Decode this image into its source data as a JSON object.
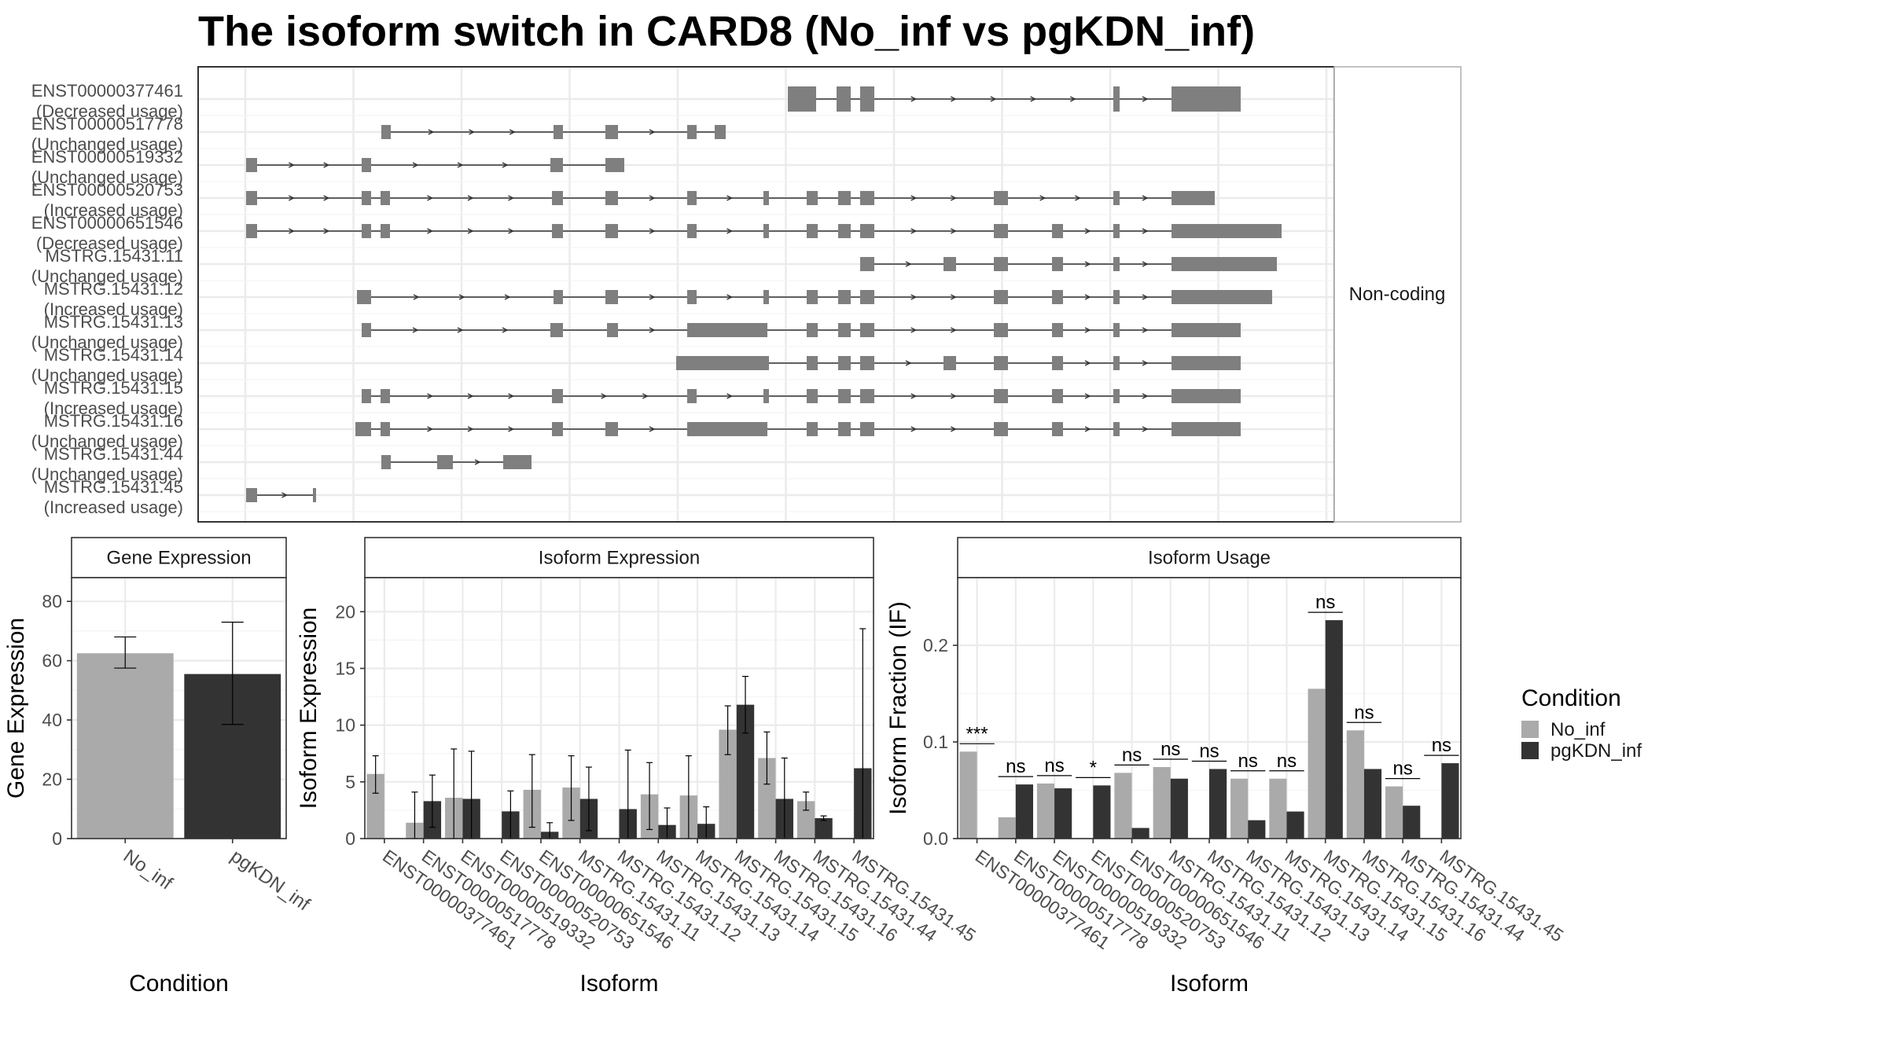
{
  "title": "The isoform switch in CARD8 (No_inf vs pgKDN_inf)",
  "colors": {
    "no_inf": "#aaaaaa",
    "pgkdn_inf": "#333333",
    "exon": "#7f7f7f",
    "grid": "#ebebeb",
    "panel_border": "#333333",
    "strip_fill": "#ffffff"
  },
  "structure_panel": {
    "strip_label": "Non-coding",
    "isoforms": [
      {
        "id": "ENST00000377461",
        "usage": "(Decreased usage)"
      },
      {
        "id": "ENST00000517778",
        "usage": "(Unchanged usage)"
      },
      {
        "id": "ENST00000519332",
        "usage": "(Unchanged usage)"
      },
      {
        "id": "ENST00000520753",
        "usage": "(Increased usage)"
      },
      {
        "id": "ENST00000651546",
        "usage": "(Decreased usage)"
      },
      {
        "id": "MSTRG.15431.11",
        "usage": "(Unchanged usage)"
      },
      {
        "id": "MSTRG.15431.12",
        "usage": "(Increased usage)"
      },
      {
        "id": "MSTRG.15431.13",
        "usage": "(Unchanged usage)"
      },
      {
        "id": "MSTRG.15431.14",
        "usage": "(Unchanged usage)"
      },
      {
        "id": "MSTRG.15431.15",
        "usage": "(Increased usage)"
      },
      {
        "id": "MSTRG.15431.16",
        "usage": "(Unchanged usage)"
      },
      {
        "id": "MSTRG.15431.44",
        "usage": "(Unchanged usage)"
      },
      {
        "id": "MSTRG.15431.45",
        "usage": "(Increased usage)"
      }
    ]
  },
  "legend": {
    "title": "Condition",
    "items": [
      "No_inf",
      "pgKDN_inf"
    ]
  },
  "chart_data": [
    {
      "type": "bar",
      "strip": "Gene Expression",
      "xlabel": "Condition",
      "ylabel": "Gene Expression",
      "ylim": [
        0,
        88
      ],
      "yticks": [
        0,
        20,
        40,
        60,
        80
      ],
      "categories": [
        "No_inf",
        "pgKDN_inf"
      ],
      "values": [
        62.5,
        55.5
      ],
      "error_low": [
        57.5,
        38.5
      ],
      "error_high": [
        68,
        73
      ]
    },
    {
      "type": "bar",
      "strip": "Isoform Expression",
      "xlabel": "Isoform",
      "ylabel": "Isoform Expression",
      "ylim": [
        0,
        23
      ],
      "yticks": [
        0,
        5,
        10,
        15,
        20
      ],
      "categories": [
        "ENST00000377461",
        "ENST00000517778",
        "ENST00000519332",
        "ENST00000520753",
        "ENST00000651546",
        "MSTRG.15431.11",
        "MSTRG.15431.12",
        "MSTRG.15431.13",
        "MSTRG.15431.14",
        "MSTRG.15431.15",
        "MSTRG.15431.16",
        "MSTRG.15431.44",
        "MSTRG.15431.45"
      ],
      "series": [
        {
          "name": "No_inf",
          "values": [
            5.7,
            1.4,
            3.6,
            0.0,
            4.3,
            4.5,
            0.0,
            3.9,
            3.8,
            9.6,
            7.1,
            3.3,
            0.0
          ],
          "error_low": [
            4.0,
            0.0,
            0.0,
            0.0,
            1.0,
            1.6,
            0.0,
            0.8,
            0.0,
            7.4,
            4.8,
            2.5,
            0.0
          ],
          "error_high": [
            7.3,
            4.1,
            7.9,
            0.0,
            7.4,
            7.3,
            0.0,
            6.7,
            7.3,
            11.7,
            9.4,
            4.1,
            0.0
          ]
        },
        {
          "name": "pgKDN_inf",
          "values": [
            0.0,
            3.3,
            3.5,
            2.4,
            0.6,
            3.5,
            2.6,
            1.2,
            1.3,
            11.8,
            3.5,
            1.8,
            6.2
          ],
          "error_low": [
            0.0,
            1.0,
            0.0,
            0.0,
            0.0,
            0.7,
            0.0,
            0.0,
            0.0,
            9.3,
            0.0,
            1.6,
            0.0
          ],
          "error_high": [
            0.0,
            5.6,
            7.7,
            4.2,
            1.4,
            6.3,
            7.8,
            2.7,
            2.8,
            14.3,
            7.1,
            2.0,
            18.5
          ]
        }
      ]
    },
    {
      "type": "bar",
      "strip": "Isoform Usage",
      "xlabel": "Isoform",
      "ylabel": "Isoform Fraction (IF)",
      "ylim": [
        0,
        0.27
      ],
      "yticks": [
        0.0,
        0.1,
        0.2
      ],
      "ytick_labels": [
        "0.0",
        "0.1",
        "0.2"
      ],
      "categories": [
        "ENST00000377461",
        "ENST00000517778",
        "ENST00000519332",
        "ENST00000520753",
        "ENST00000651546",
        "MSTRG.15431.11",
        "MSTRG.15431.12",
        "MSTRG.15431.13",
        "MSTRG.15431.14",
        "MSTRG.15431.15",
        "MSTRG.15431.16",
        "MSTRG.15431.44",
        "MSTRG.15431.45"
      ],
      "significance": [
        "***",
        "ns",
        "ns",
        "*",
        "ns",
        "ns",
        "ns",
        "ns",
        "ns",
        "ns",
        "ns",
        "ns",
        "ns"
      ],
      "series": [
        {
          "name": "No_inf",
          "values": [
            0.09,
            0.022,
            0.057,
            0.0,
            0.068,
            0.074,
            0.0,
            0.062,
            0.062,
            0.155,
            0.112,
            0.054,
            0.0
          ]
        },
        {
          "name": "pgKDN_inf",
          "values": [
            0.0,
            0.056,
            0.052,
            0.055,
            0.011,
            0.062,
            0.072,
            0.019,
            0.028,
            0.226,
            0.072,
            0.034,
            0.078
          ]
        }
      ]
    }
  ]
}
